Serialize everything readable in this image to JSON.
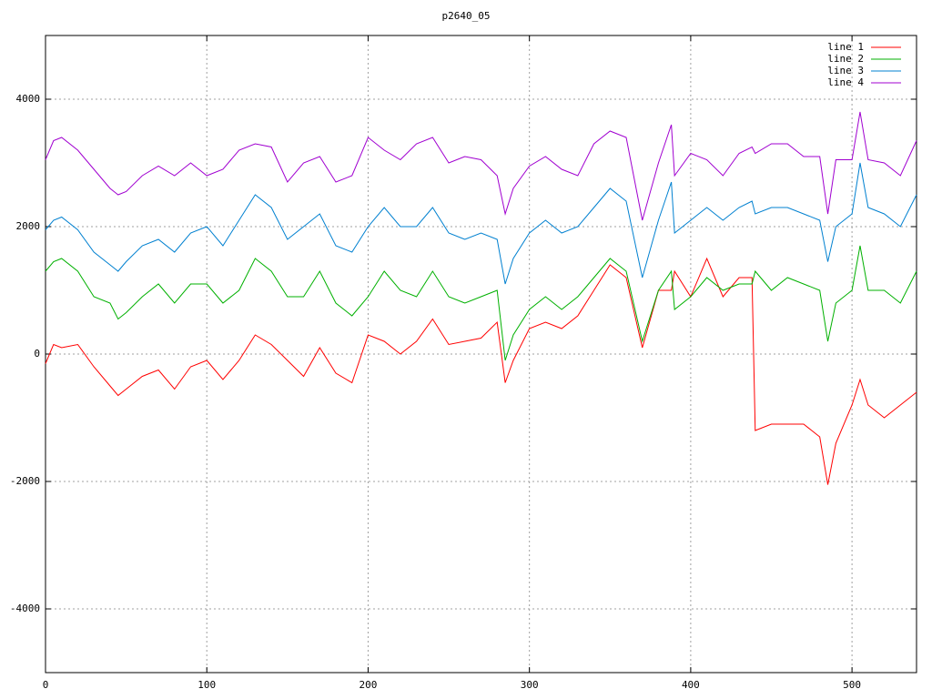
{
  "chart_data": {
    "type": "line",
    "title": "p2640_05",
    "x": [
      0,
      5,
      10,
      20,
      30,
      40,
      45,
      50,
      60,
      70,
      80,
      90,
      100,
      110,
      120,
      130,
      140,
      150,
      160,
      170,
      180,
      190,
      200,
      210,
      220,
      230,
      240,
      250,
      260,
      270,
      280,
      285,
      290,
      300,
      310,
      320,
      330,
      340,
      350,
      360,
      370,
      380,
      388,
      390,
      400,
      410,
      420,
      430,
      438,
      440,
      450,
      460,
      470,
      480,
      485,
      490,
      500,
      505,
      510,
      520,
      530,
      540
    ],
    "series": [
      {
        "name": "line 1",
        "color": "#ff0000",
        "values": [
          -150,
          150,
          100,
          150,
          -200,
          -500,
          -650,
          -550,
          -350,
          -250,
          -550,
          -200,
          -100,
          -400,
          -100,
          300,
          150,
          -100,
          -350,
          100,
          -300,
          -450,
          300,
          200,
          0,
          200,
          550,
          150,
          200,
          250,
          500,
          -450,
          -100,
          400,
          500,
          400,
          600,
          1000,
          1400,
          1200,
          100,
          1000,
          1000,
          1300,
          900,
          1500,
          900,
          1200,
          1200,
          -1200,
          -1100,
          -1100,
          -1100,
          -1300,
          -2050,
          -1400,
          -800,
          -400,
          -800,
          -1000,
          -800,
          -600
        ]
      },
      {
        "name": "line 2",
        "color": "#00b000",
        "values": [
          1300,
          1450,
          1500,
          1300,
          900,
          800,
          550,
          650,
          900,
          1100,
          800,
          1100,
          1100,
          800,
          1000,
          1500,
          1300,
          900,
          900,
          1300,
          800,
          600,
          900,
          1300,
          1000,
          900,
          1300,
          900,
          800,
          900,
          1000,
          -100,
          300,
          700,
          900,
          700,
          900,
          1200,
          1500,
          1300,
          200,
          1000,
          1300,
          700,
          900,
          1200,
          1000,
          1100,
          1100,
          1300,
          1000,
          1200,
          1100,
          1000,
          200,
          800,
          1000,
          1700,
          1000,
          1000,
          800,
          1300
        ]
      },
      {
        "name": "line 3",
        "color": "#0080d0",
        "values": [
          1950,
          2100,
          2150,
          1950,
          1600,
          1400,
          1300,
          1450,
          1700,
          1800,
          1600,
          1900,
          2000,
          1700,
          2100,
          2500,
          2300,
          1800,
          2000,
          2200,
          1700,
          1600,
          2000,
          2300,
          2000,
          2000,
          2300,
          1900,
          1800,
          1900,
          1800,
          1100,
          1500,
          1900,
          2100,
          1900,
          2000,
          2300,
          2600,
          2400,
          1200,
          2100,
          2700,
          1900,
          2100,
          2300,
          2100,
          2300,
          2400,
          2200,
          2300,
          2300,
          2200,
          2100,
          1450,
          2000,
          2200,
          3000,
          2300,
          2200,
          2000,
          2500
        ]
      },
      {
        "name": "line 4",
        "color": "#a000d0",
        "values": [
          3050,
          3350,
          3400,
          3200,
          2900,
          2600,
          2500,
          2550,
          2800,
          2950,
          2800,
          3000,
          2800,
          2900,
          3200,
          3300,
          3250,
          2700,
          3000,
          3100,
          2700,
          2800,
          3400,
          3200,
          3050,
          3300,
          3400,
          3000,
          3100,
          3050,
          2800,
          2200,
          2600,
          2950,
          3100,
          2900,
          2800,
          3300,
          3500,
          3400,
          2100,
          3000,
          3600,
          2800,
          3150,
          3050,
          2800,
          3150,
          3250,
          3150,
          3300,
          3300,
          3100,
          3100,
          2200,
          3050,
          3050,
          3800,
          3050,
          3000,
          2800,
          3350
        ]
      }
    ],
    "xlim": [
      0,
      540
    ],
    "ylim": [
      -5000,
      5000
    ],
    "xticks": [
      0,
      100,
      200,
      300,
      400,
      500
    ],
    "yticks": [
      -4000,
      -2000,
      0,
      2000,
      4000
    ],
    "grid": true,
    "legend": "top-right"
  }
}
